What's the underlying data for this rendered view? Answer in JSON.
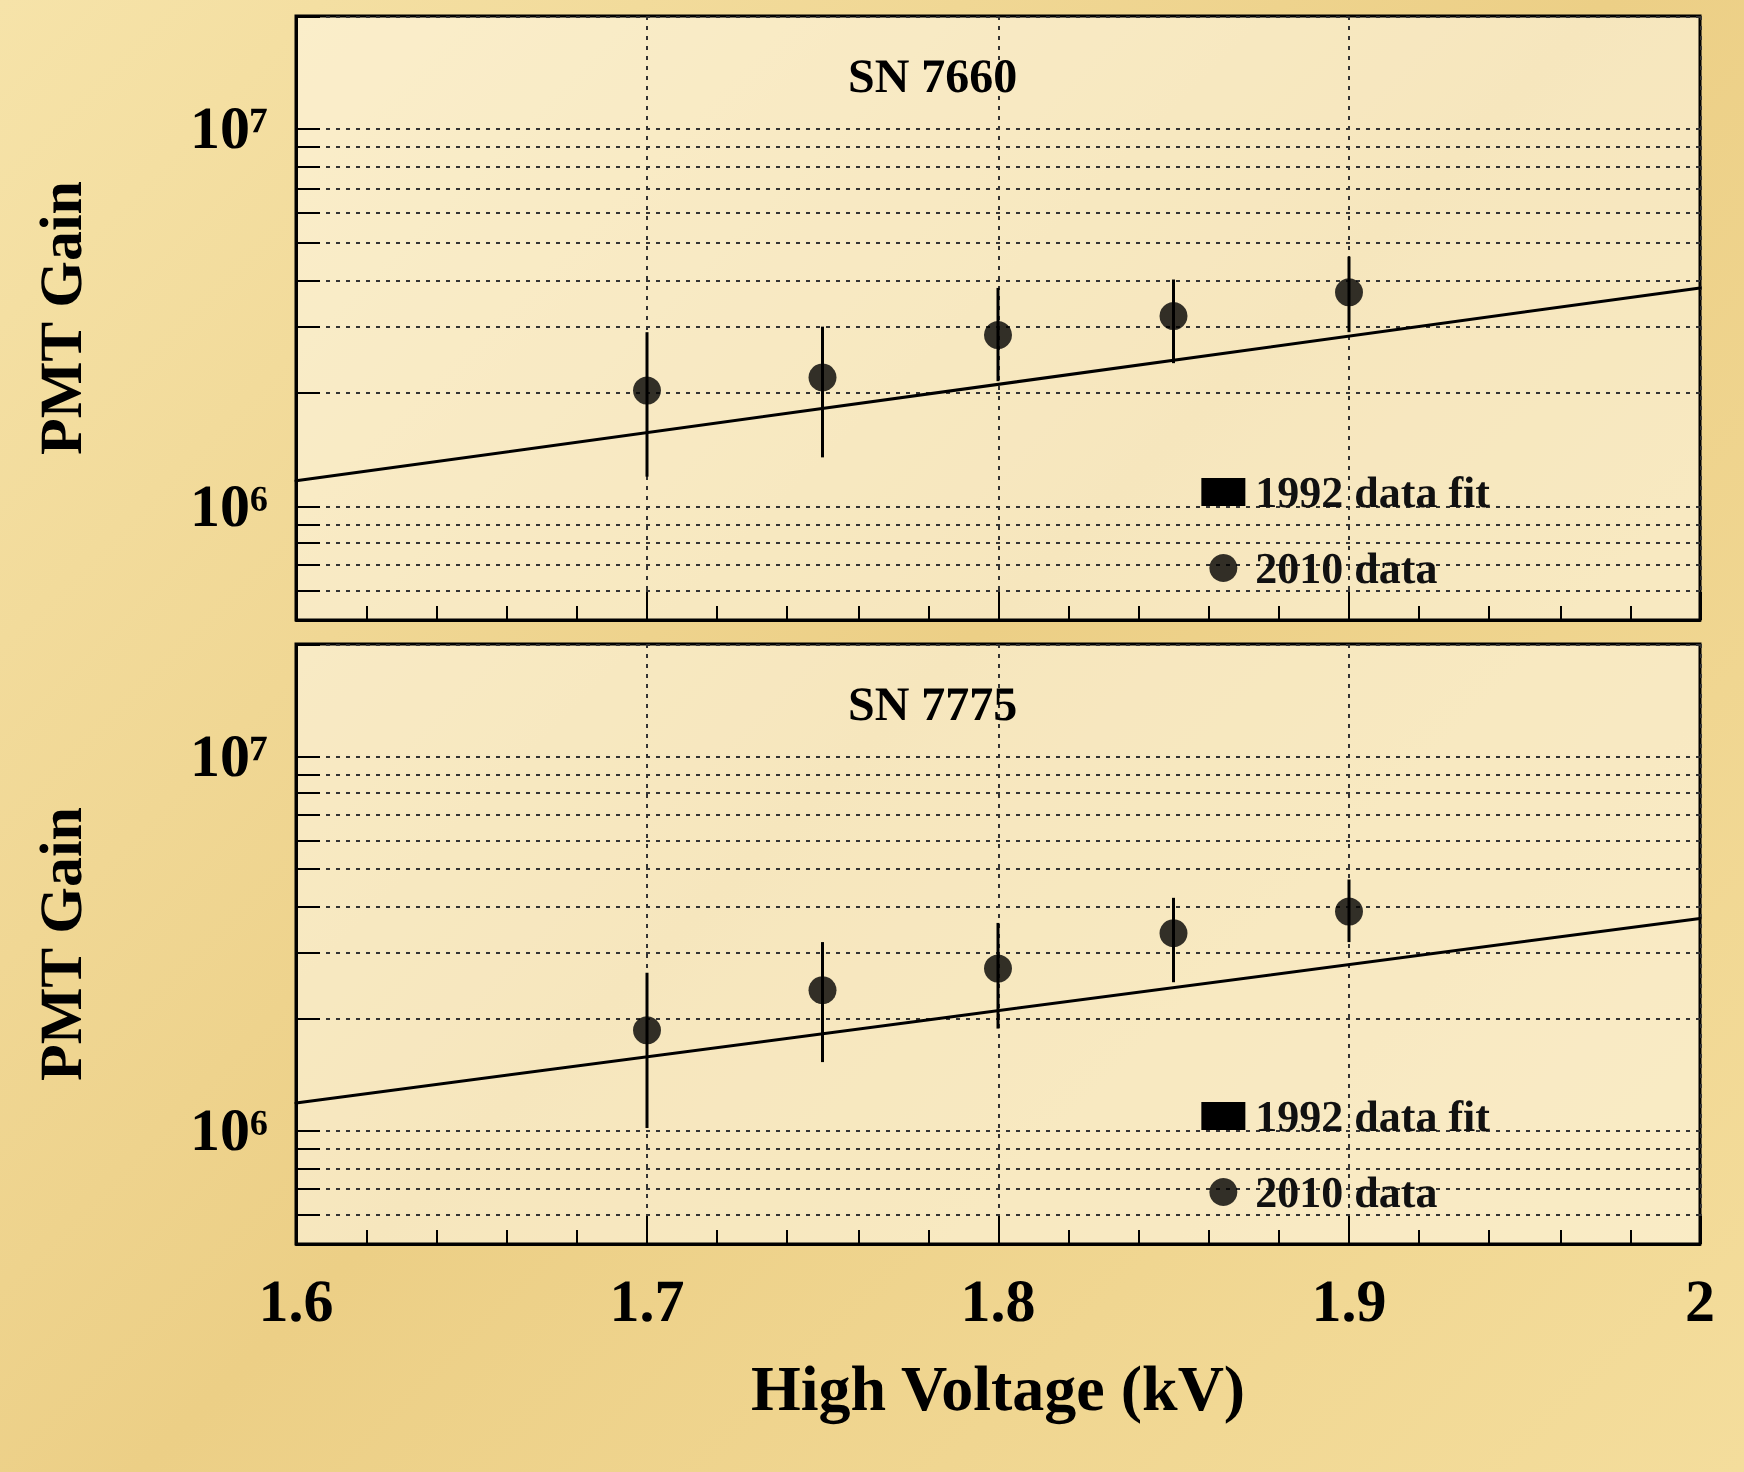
{
  "chart_data": [
    {
      "type": "scatter",
      "title": "SN 7660",
      "ylabel": "PMT Gain",
      "log": "y",
      "grid": true,
      "legend": "bottom right",
      "tick_labels": "y",
      "xlim": [
        1.6,
        2
      ],
      "xticks": [
        1.6,
        1.7,
        1.8,
        1.9,
        2
      ],
      "ylim": [
        500000,
        20000000
      ],
      "yticks": [
        {
          "value": 500000,
          "label": null
        },
        {
          "value": 600000,
          "label": null
        },
        {
          "value": 700000,
          "label": null
        },
        {
          "value": 800000,
          "label": null
        },
        {
          "value": 900000,
          "label": null
        },
        {
          "value": 1000000,
          "label": "10⁶"
        },
        {
          "value": 2000000,
          "label": null
        },
        {
          "value": 3000000,
          "label": null
        },
        {
          "value": 4000000,
          "label": null
        },
        {
          "value": 5000000,
          "label": null
        },
        {
          "value": 6000000,
          "label": null
        },
        {
          "value": 7000000,
          "label": null
        },
        {
          "value": 8000000,
          "label": null
        },
        {
          "value": 9000000,
          "label": null
        },
        {
          "value": 10000000,
          "label": "10⁷"
        },
        {
          "value": 20000000,
          "label": null
        }
      ],
      "series": [
        {
          "name": "1992 data fit",
          "type": "line",
          "color": "#000000",
          "marker": "none",
          "x": [
            1.6,
            2
          ],
          "values": [
            1170000,
            3800000
          ]
        },
        {
          "name": "2010 data",
          "color": "#000000",
          "marker": "circle",
          "x": [
            1.7,
            1.75,
            1.8,
            1.85,
            1.9
          ],
          "values": [
            2030000,
            2200000,
            2850000,
            3200000,
            3700000
          ],
          "errors": [
            [
              1200000,
              2900000
            ],
            [
              1350000,
              3000000
            ],
            [
              2150000,
              3800000
            ],
            [
              2400000,
              4000000
            ],
            [
              2900000,
              4600000
            ]
          ]
        }
      ]
    },
    {
      "type": "scatter",
      "title": "SN 7775",
      "ylabel": "PMT Gain",
      "xlabel": "High Voltage (kV)",
      "log": "y",
      "grid": true,
      "legend": "bottom right",
      "xlim": [
        1.6,
        2
      ],
      "xticks": [
        1.6,
        1.7,
        1.8,
        1.9,
        2
      ],
      "ylim": [
        500000,
        20000000
      ],
      "yticks": [
        {
          "value": 500000,
          "label": null
        },
        {
          "value": 600000,
          "label": null
        },
        {
          "value": 700000,
          "label": null
        },
        {
          "value": 800000,
          "label": null
        },
        {
          "value": 900000,
          "label": null
        },
        {
          "value": 1000000,
          "label": "10⁶"
        },
        {
          "value": 2000000,
          "label": null
        },
        {
          "value": 3000000,
          "label": null
        },
        {
          "value": 4000000,
          "label": null
        },
        {
          "value": 5000000,
          "label": null
        },
        {
          "value": 6000000,
          "label": null
        },
        {
          "value": 7000000,
          "label": null
        },
        {
          "value": 8000000,
          "label": null
        },
        {
          "value": 9000000,
          "label": null
        },
        {
          "value": 10000000,
          "label": "10⁷"
        },
        {
          "value": 20000000,
          "label": null
        }
      ],
      "series": [
        {
          "name": "1992 data fit",
          "type": "line",
          "color": "#000000",
          "marker": "none",
          "x": [
            1.6,
            2
          ],
          "values": [
            1190000,
            3700000
          ]
        },
        {
          "name": "2010 data",
          "color": "#000000",
          "marker": "circle",
          "x": [
            1.7,
            1.75,
            1.8,
            1.85,
            1.9
          ],
          "values": [
            1860000,
            2380000,
            2720000,
            3380000,
            3860000
          ],
          "errors": [
            [
              1020000,
              2650000
            ],
            [
              1530000,
              3200000
            ],
            [
              1880000,
              3600000
            ],
            [
              2500000,
              4200000
            ],
            [
              3200000,
              4700000
            ]
          ]
        }
      ]
    }
  ]
}
